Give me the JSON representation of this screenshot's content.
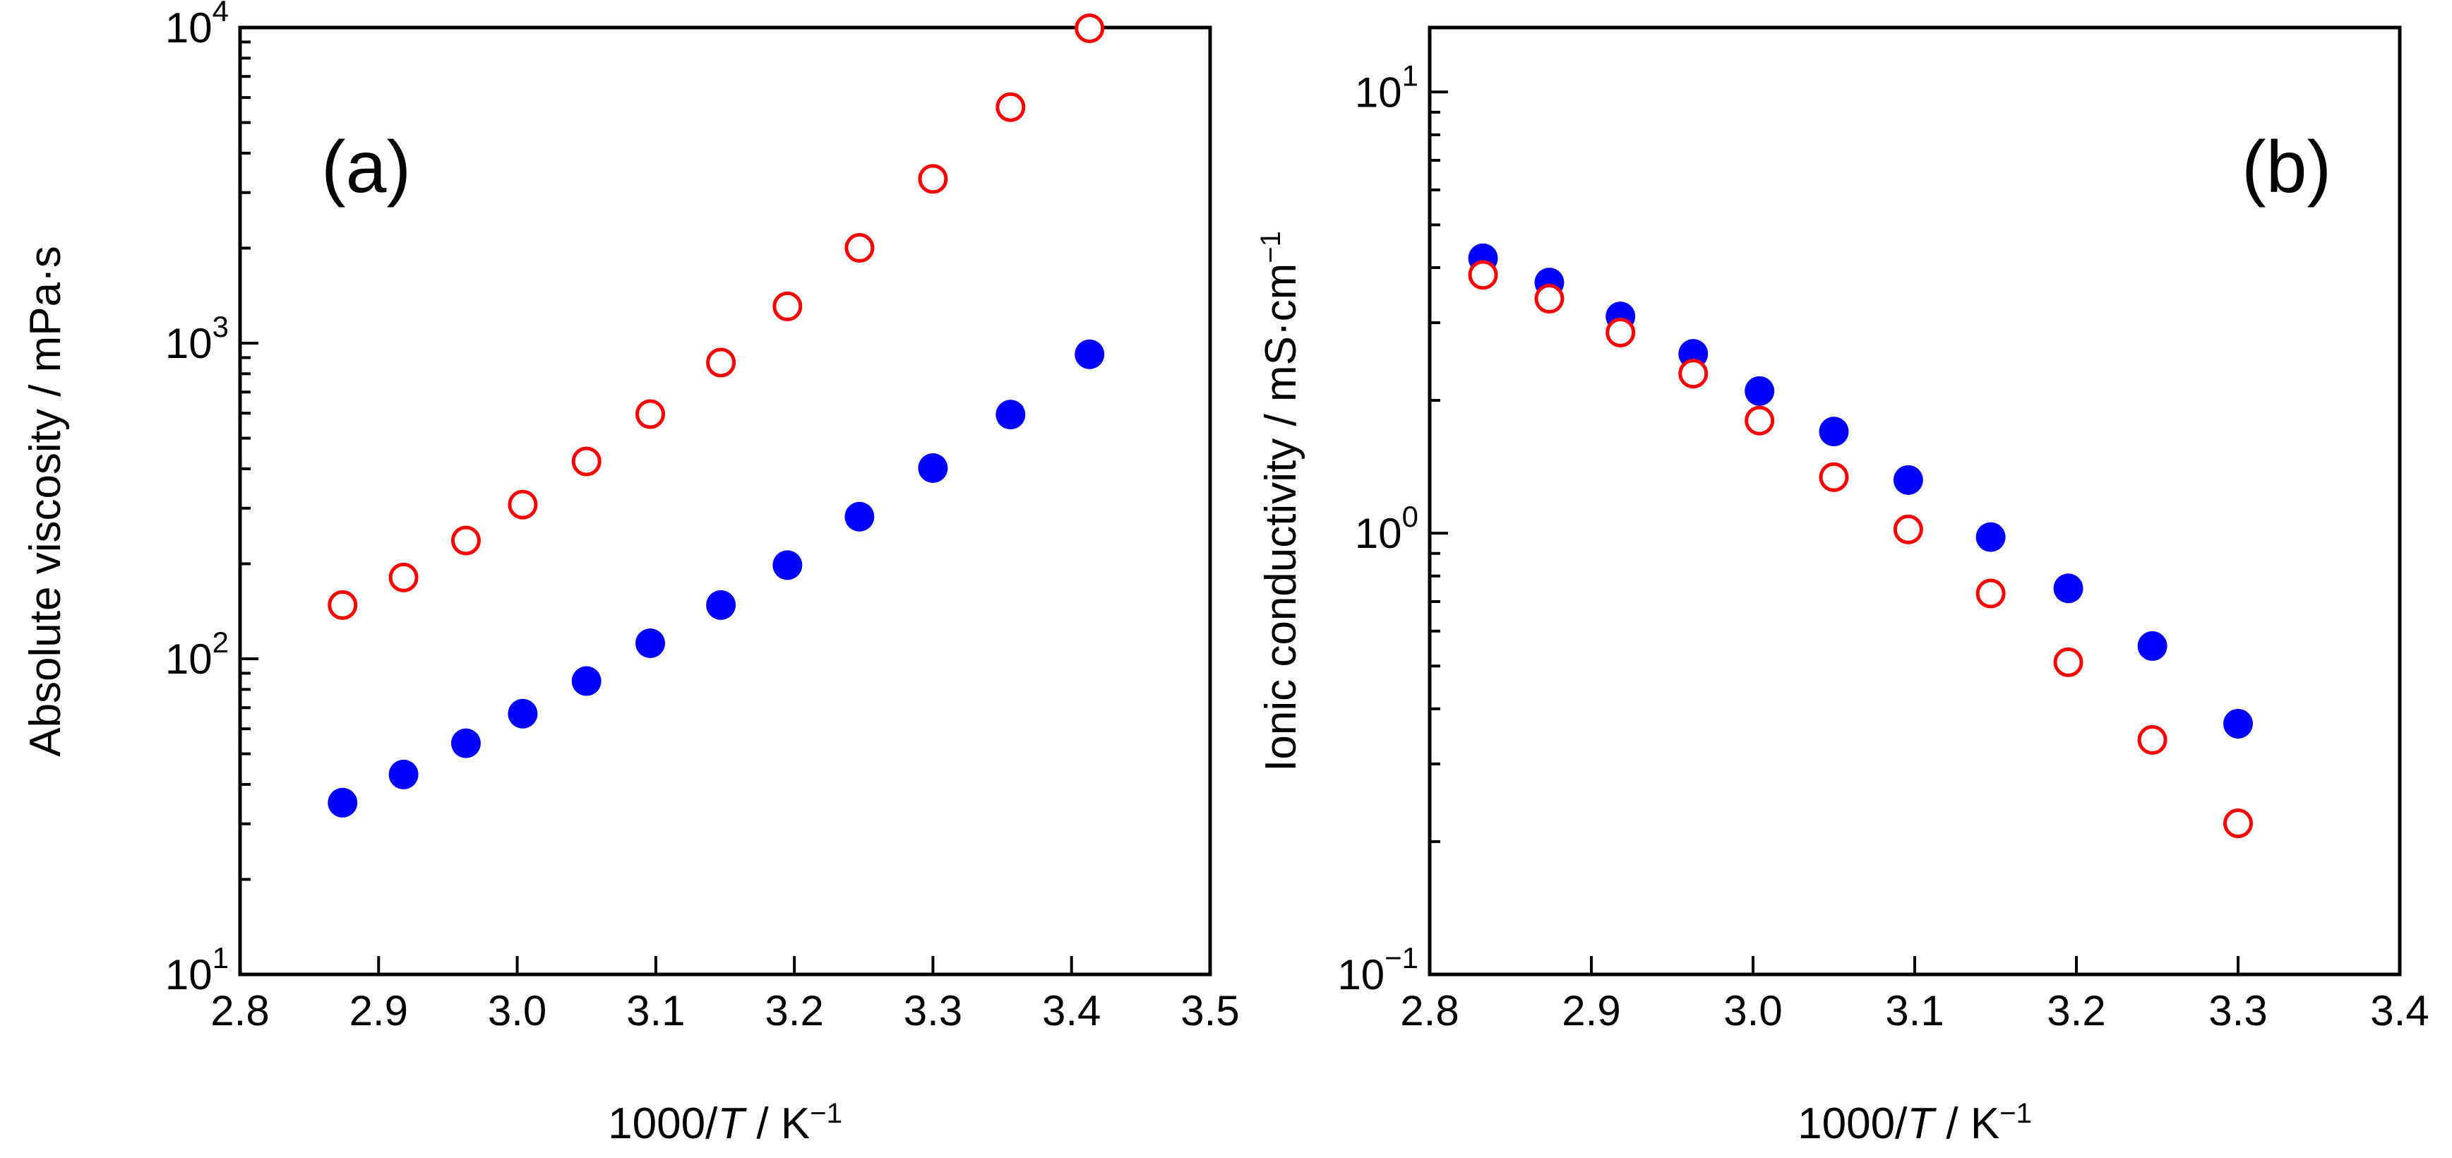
{
  "chart_data": [
    {
      "type": "scatter",
      "panel_label": "(a)",
      "xlabel": {
        "prefix": "1000/",
        "italic": "T",
        "suffix": " / K",
        "sup": "−1"
      },
      "ylabel": "Absolute viscosity / mPa·s",
      "yscale": "log",
      "xlim": [
        2.8,
        3.5
      ],
      "ylim": [
        10,
        10000
      ],
      "xticks": [
        2.8,
        2.9,
        3.0,
        3.1,
        3.2,
        3.3,
        3.4,
        3.5
      ],
      "xtick_labels": [
        "2.8",
        "2.9",
        "3.0",
        "3.1",
        "3.2",
        "3.3",
        "3.4",
        "3.5"
      ],
      "yticks": [
        {
          "value": 10,
          "base": "10",
          "exp": "1"
        },
        {
          "value": 100,
          "base": "10",
          "exp": "2"
        },
        {
          "value": 1000,
          "base": "10",
          "exp": "3"
        },
        {
          "value": 10000,
          "base": "10",
          "exp": "4"
        }
      ],
      "series": [
        {
          "name": "filled-blue",
          "marker": "filled-circle",
          "color": "#0000ff",
          "x": [
            2.874,
            2.918,
            2.963,
            3.004,
            3.05,
            3.096,
            3.147,
            3.195,
            3.247,
            3.3,
            3.356,
            3.413
          ],
          "y": [
            35,
            43,
            54,
            67,
            85,
            112,
            148,
            198,
            282,
            402,
            594,
            922
          ]
        },
        {
          "name": "open-red",
          "marker": "open-circle",
          "color": "#ff0000",
          "x": [
            2.874,
            2.918,
            2.963,
            3.004,
            3.05,
            3.096,
            3.147,
            3.195,
            3.247,
            3.3,
            3.356,
            3.413
          ],
          "y": [
            148,
            181,
            237,
            308,
            422,
            596,
            868,
            1308,
            2004,
            3314,
            5595,
            9945
          ]
        }
      ]
    },
    {
      "type": "scatter",
      "panel_label": "(b)",
      "xlabel": {
        "prefix": "1000/",
        "italic": "T",
        "suffix": " / K",
        "sup": "−1"
      },
      "ylabel": {
        "text": "Ionic conductivity / mS·cm",
        "sup": "−1"
      },
      "yscale": "log",
      "xlim": [
        2.8,
        3.4
      ],
      "ylim": [
        0.1,
        14
      ],
      "xticks": [
        2.8,
        2.9,
        3.0,
        3.1,
        3.2,
        3.3,
        3.4
      ],
      "xtick_labels": [
        "2.8",
        "2.9",
        "3.0",
        "3.1",
        "3.2",
        "3.3",
        "3.4"
      ],
      "yticks": [
        {
          "value": 0.1,
          "base": "10",
          "exp": "−1"
        },
        {
          "value": 1,
          "base": "10",
          "exp": "0"
        },
        {
          "value": 10,
          "base": "10",
          "exp": "1"
        }
      ],
      "series": [
        {
          "name": "filled-blue",
          "marker": "filled-circle",
          "color": "#0000ff",
          "x": [
            2.833,
            2.874,
            2.918,
            2.963,
            3.004,
            3.05,
            3.096,
            3.147,
            3.195,
            3.247,
            3.3
          ],
          "y": [
            4.2,
            3.7,
            3.1,
            2.55,
            2.1,
            1.7,
            1.32,
            0.98,
            0.75,
            0.555,
            0.37
          ]
        },
        {
          "name": "open-red",
          "marker": "open-circle",
          "color": "#ff0000",
          "x": [
            2.833,
            2.874,
            2.918,
            2.963,
            3.004,
            3.05,
            3.096,
            3.147,
            3.195,
            3.247,
            3.3
          ],
          "y": [
            3.85,
            3.4,
            2.85,
            2.3,
            1.8,
            1.34,
            1.02,
            0.73,
            0.51,
            0.34,
            0.22
          ]
        }
      ]
    }
  ]
}
